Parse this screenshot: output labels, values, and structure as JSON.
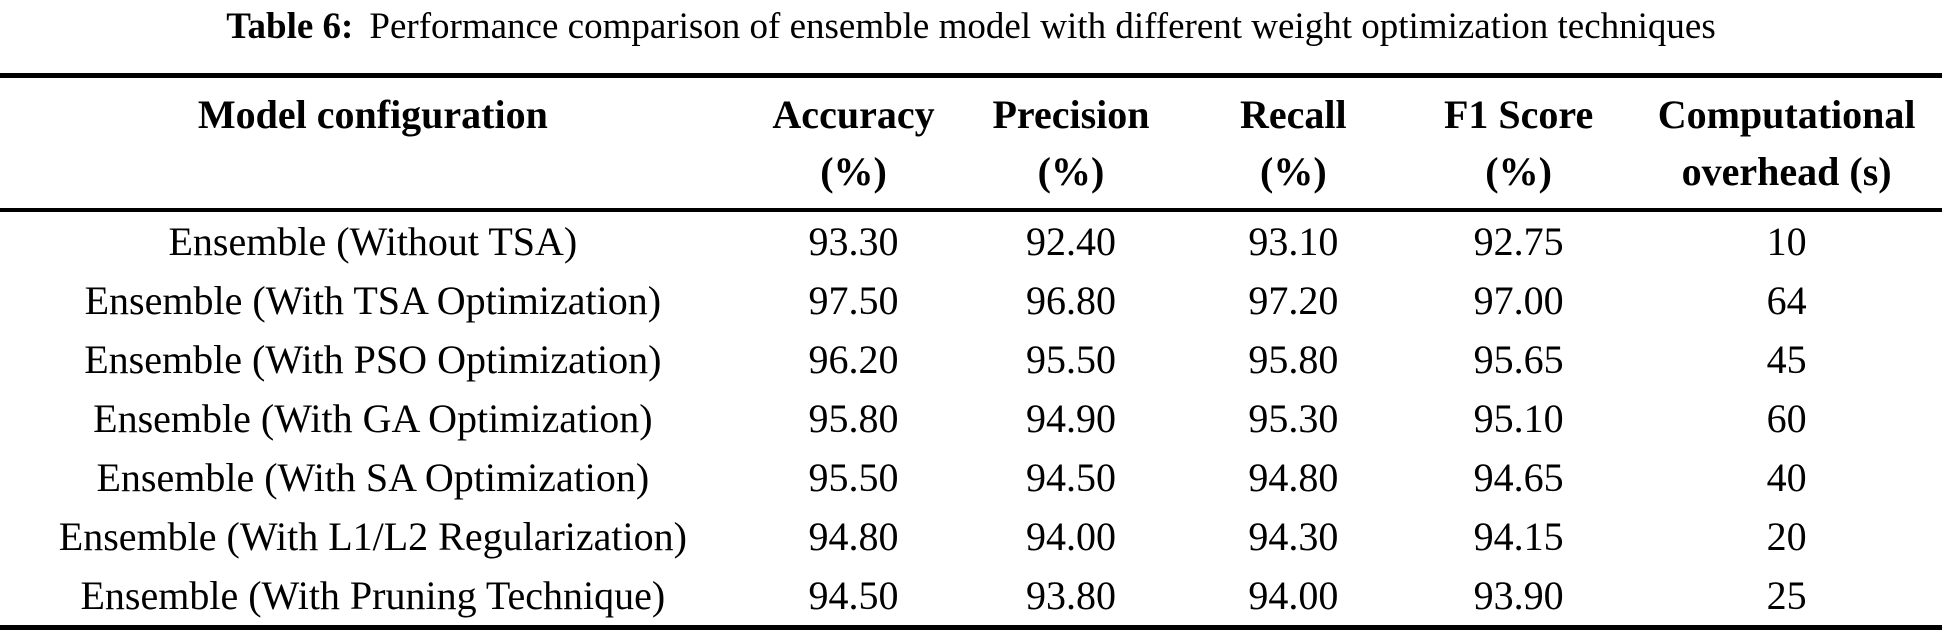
{
  "caption": {
    "label": "Table 6:",
    "text": "Performance comparison of ensemble model with different weight optimization techniques"
  },
  "table": {
    "columns": [
      {
        "line1": "Model configuration",
        "line2": ""
      },
      {
        "line1": "Accuracy",
        "line2": "(%)"
      },
      {
        "line1": "Precision",
        "line2": "(%)"
      },
      {
        "line1": "Recall",
        "line2": "(%)"
      },
      {
        "line1": "F1 Score",
        "line2": "(%)"
      },
      {
        "line1": "Computational",
        "line2": "overhead (s)"
      }
    ],
    "rows": [
      [
        "Ensemble (Without TSA)",
        "93.30",
        "92.40",
        "93.10",
        "92.75",
        "10"
      ],
      [
        "Ensemble (With TSA Optimization)",
        "97.50",
        "96.80",
        "97.20",
        "97.00",
        "64"
      ],
      [
        "Ensemble (With PSO Optimization)",
        "96.20",
        "95.50",
        "95.80",
        "95.65",
        "45"
      ],
      [
        "Ensemble (With GA Optimization)",
        "95.80",
        "94.90",
        "95.30",
        "95.10",
        "60"
      ],
      [
        "Ensemble (With SA Optimization)",
        "95.50",
        "94.50",
        "94.80",
        "94.65",
        "40"
      ],
      [
        "Ensemble (With L1/L2 Regularization)",
        "94.80",
        "94.00",
        "94.30",
        "94.15",
        "20"
      ],
      [
        "Ensemble (With Pruning Technique)",
        "94.50",
        "93.80",
        "94.00",
        "93.90",
        "25"
      ]
    ]
  },
  "colors": {
    "text": "#000000",
    "background": "#ffffff",
    "rule": "#000000"
  }
}
